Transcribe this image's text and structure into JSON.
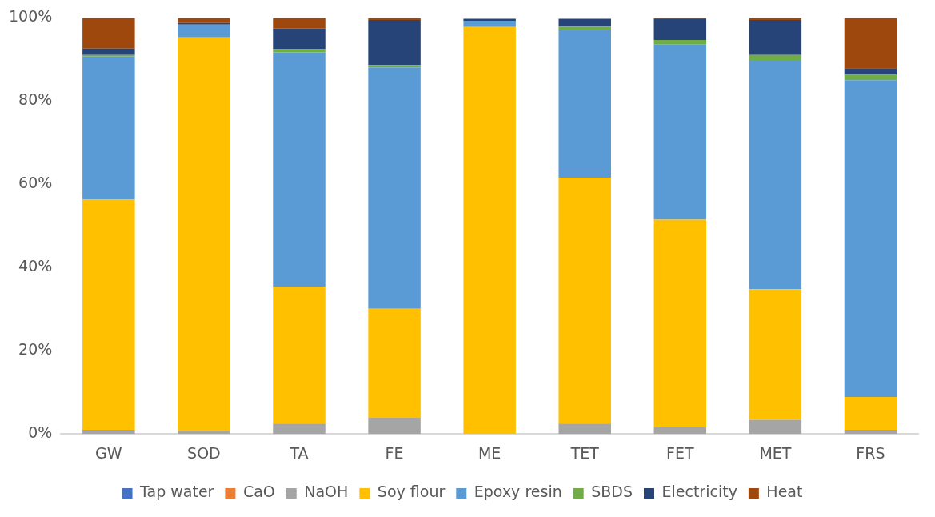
{
  "chart_data": {
    "type": "bar",
    "stacked": true,
    "categories": [
      "GW",
      "SOD",
      "TA",
      "FE",
      "ME",
      "TET",
      "FET",
      "MET",
      "FRS"
    ],
    "series": [
      {
        "name": "Tap water",
        "color": "#4472c4",
        "values": [
          0,
          0,
          0,
          0,
          0,
          0,
          0,
          0,
          0
        ]
      },
      {
        "name": "CaO",
        "color": "#ed7d31",
        "values": [
          0,
          0,
          0,
          0,
          0,
          0,
          0,
          0,
          0
        ]
      },
      {
        "name": "NaOH",
        "color": "#a5a5a5",
        "values": [
          1.0,
          0.7,
          2.5,
          3.9,
          null,
          2.5,
          1.7,
          3.4,
          1.0
        ]
      },
      {
        "name": "Soy flour",
        "color": "#ffc000",
        "values": [
          55.3,
          94.6,
          32.9,
          26.2,
          97.8,
          59.1,
          49.8,
          31.4,
          7.9
        ]
      },
      {
        "name": "Epoxy resin",
        "color": "#5b9bd5",
        "values": [
          34.4,
          3.1,
          56.3,
          58.0,
          1.5,
          35.6,
          42.2,
          54.9,
          76.1
        ]
      },
      {
        "name": "SBDS",
        "color": "#70ad47",
        "values": [
          0.4,
          0,
          0.8,
          0.6,
          0,
          0.7,
          1.0,
          1.4,
          1.3
        ]
      },
      {
        "name": "Electricity",
        "color": "#264478",
        "values": [
          1.5,
          0.4,
          5.0,
          10.8,
          0.5,
          1.9,
          5.0,
          8.4,
          1.6
        ]
      },
      {
        "name": "Heat",
        "color": "#9e480e",
        "values": [
          7.4,
          1.2,
          2.5,
          0.5,
          0,
          null,
          0.3,
          0.5,
          12.1
        ]
      }
    ],
    "ylim": [
      0,
      100
    ],
    "yticks": [
      {
        "value": 0,
        "label": "0%"
      },
      {
        "value": 20,
        "label": "20%"
      },
      {
        "value": 40,
        "label": "40%"
      },
      {
        "value": 60,
        "label": "60%"
      },
      {
        "value": 80,
        "label": "80%"
      },
      {
        "value": 100,
        "label": "100%"
      }
    ],
    "grid": false,
    "legend": "bottom"
  }
}
